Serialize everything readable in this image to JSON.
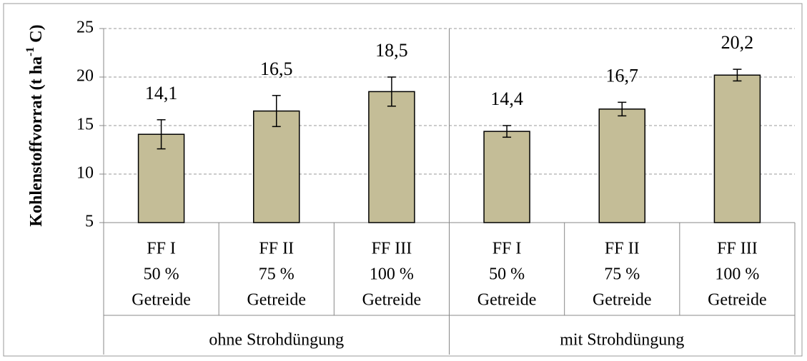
{
  "chart_data": {
    "type": "bar",
    "ylabel_parts": [
      "Kohlenstoffvorrat (t ha",
      "-1",
      " C)"
    ],
    "groups": [
      "ohne Strohdüngung",
      "mit Strohdüngung"
    ],
    "categories": [
      [
        "FF I",
        "50 %",
        "Getreide"
      ],
      [
        "FF II",
        "75 %",
        "Getreide"
      ],
      [
        "FF III",
        "100 %",
        "Getreide"
      ],
      [
        "FF I",
        "50 %",
        "Getreide"
      ],
      [
        "FF II",
        "75 %",
        "Getreide"
      ],
      [
        "FF III",
        "100 %",
        "Getreide"
      ]
    ],
    "values": [
      14.1,
      16.5,
      18.5,
      14.4,
      16.7,
      20.2
    ],
    "value_labels": [
      "14,1",
      "16,5",
      "18,5",
      "14,4",
      "16,7",
      "20,2"
    ],
    "errors": [
      1.5,
      1.6,
      1.5,
      0.6,
      0.7,
      0.6
    ],
    "color": "#c4bd97",
    "ylim": [
      5,
      25
    ],
    "yticks": [
      5,
      10,
      15,
      20,
      25
    ],
    "grid": true
  }
}
